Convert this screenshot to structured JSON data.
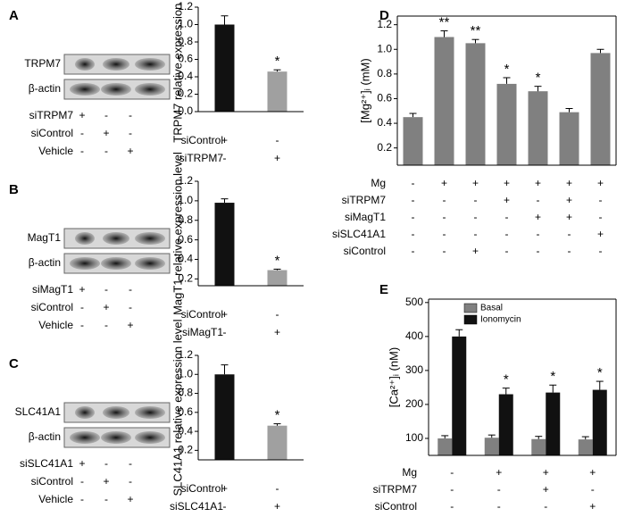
{
  "blots": [
    {
      "panel": "A",
      "rows": [
        "TRPM7",
        "β-actin"
      ],
      "conditions": [
        {
          "label": "siTRPM7",
          "marks": [
            "+",
            "-",
            "-"
          ]
        },
        {
          "label": "siControl",
          "marks": [
            "-",
            "+",
            "-"
          ]
        },
        {
          "label": "Vehicle",
          "marks": [
            "-",
            "-",
            "+"
          ]
        }
      ]
    },
    {
      "panel": "B",
      "rows": [
        "MagT1",
        "β-actin"
      ],
      "conditions": [
        {
          "label": "siMagT1",
          "marks": [
            "+",
            "-",
            "-"
          ]
        },
        {
          "label": "siControl",
          "marks": [
            "-",
            "+",
            "-"
          ]
        },
        {
          "label": "Vehicle",
          "marks": [
            "-",
            "-",
            "+"
          ]
        }
      ]
    },
    {
      "panel": "C",
      "rows": [
        "SLC41A1",
        "β-actin"
      ],
      "conditions": [
        {
          "label": "siSLC41A1",
          "marks": [
            "+",
            "-",
            "-"
          ]
        },
        {
          "label": "siControl",
          "marks": [
            "-",
            "+",
            "-"
          ]
        },
        {
          "label": "Vehicle",
          "marks": [
            "-",
            "-",
            "+"
          ]
        }
      ]
    }
  ],
  "chart_data": [
    {
      "type": "bar",
      "y_label": "TRPM7 relative expression level",
      "values": [
        1.0,
        0.46
      ],
      "errors": [
        0.1,
        0.02
      ],
      "colors": [
        "#111111",
        "#a0a0a0"
      ],
      "annotations": [
        null,
        "*"
      ],
      "ylim": [
        0,
        1.2
      ],
      "yticks": [
        {
          "value": 0,
          "label": "0.0"
        },
        0.2,
        0.4,
        0.6,
        0.8,
        {
          "value": 1,
          "label": "1.0"
        },
        1.2
      ],
      "conditions": [
        {
          "label": "siControl",
          "marks": [
            "+",
            "-"
          ]
        },
        {
          "label": "siTRPM7",
          "marks": [
            "-",
            "+"
          ]
        }
      ]
    },
    {
      "type": "bar",
      "y_label": "MagT1 relative expression level",
      "values": [
        0.98,
        0.29
      ],
      "errors": [
        0.04,
        0.01
      ],
      "colors": [
        "#111111",
        "#a0a0a0"
      ],
      "annotations": [
        null,
        "*"
      ],
      "ylim": [
        0.13,
        1.2
      ],
      "yticks": [
        0.2,
        0.4,
        0.6,
        0.8,
        {
          "value": 1,
          "label": "1.0"
        },
        1.2
      ],
      "conditions": [
        {
          "label": "siControl",
          "marks": [
            "+",
            "-"
          ]
        },
        {
          "label": "siMagT1",
          "marks": [
            "-",
            "+"
          ]
        }
      ]
    },
    {
      "type": "bar",
      "y_label": "SLC41A1 relative expression level",
      "values": [
        1.0,
        0.46
      ],
      "errors": [
        0.1,
        0.02
      ],
      "colors": [
        "#111111",
        "#a0a0a0"
      ],
      "annotations": [
        null,
        "*"
      ],
      "ylim": [
        0.1,
        1.2
      ],
      "yticks": [
        0.2,
        0.4,
        0.6,
        0.8,
        {
          "value": 1,
          "label": "1.0"
        },
        1.2
      ],
      "conditions": [
        {
          "label": "siControl",
          "marks": [
            "+",
            "-"
          ]
        },
        {
          "label": "siSLC41A1",
          "marks": [
            "-",
            "+"
          ]
        }
      ]
    },
    {
      "type": "bar",
      "panel": "D",
      "y_label": "[Mg²⁺]ᵢ (mM)",
      "values": [
        0.45,
        1.1,
        1.05,
        0.72,
        0.66,
        0.49,
        0.97
      ],
      "errors": [
        0.03,
        0.05,
        0.03,
        0.05,
        0.04,
        0.03,
        0.03
      ],
      "colors": [
        "#808080",
        "#808080",
        "#808080",
        "#808080",
        "#808080",
        "#808080",
        "#808080"
      ],
      "annotations": [
        null,
        "**",
        "**",
        "*",
        "*",
        null,
        null
      ],
      "ylim": [
        0.06,
        1.27
      ],
      "yticks": [
        0.2,
        0.4,
        0.6,
        0.8,
        {
          "value": 1,
          "label": "1.0"
        },
        1.2
      ],
      "conditions": [
        {
          "label": "Mg",
          "marks": [
            "-",
            "+",
            "+",
            "+",
            "+",
            "+",
            "+"
          ]
        },
        {
          "label": "siTRPM7",
          "marks": [
            "-",
            "-",
            "-",
            "+",
            "-",
            "+",
            "-"
          ]
        },
        {
          "label": "siMagT1",
          "marks": [
            "-",
            "-",
            "-",
            "-",
            "+",
            "+",
            "-"
          ]
        },
        {
          "label": "siSLC41A1",
          "marks": [
            "-",
            "-",
            "-",
            "-",
            "-",
            "-",
            "+"
          ]
        },
        {
          "label": "siControl",
          "marks": [
            "-",
            "-",
            "+",
            "-",
            "-",
            "-",
            "-"
          ]
        }
      ]
    },
    {
      "type": "grouped_bar",
      "panel": "E",
      "y_label": "[Ca²⁺]ᵢ (nM)",
      "legend": "upper left",
      "series": [
        {
          "name": "Basal",
          "color": "#808080",
          "values": [
            100,
            102,
            98,
            97
          ],
          "errors": [
            8,
            8,
            8,
            8
          ],
          "annotations": [
            null,
            null,
            null,
            null
          ]
        },
        {
          "name": "Ionomycin",
          "color": "#111111",
          "values": [
            400,
            230,
            235,
            243
          ],
          "errors": [
            20,
            18,
            22,
            25
          ],
          "annotations": [
            null,
            "*",
            "*",
            "*"
          ]
        }
      ],
      "ylim": [
        50,
        510
      ],
      "yticks": [
        100,
        200,
        300,
        400,
        500
      ],
      "conditions": [
        {
          "label": "Mg",
          "marks": [
            "-",
            "+",
            "+",
            "+"
          ]
        },
        {
          "label": "siTRPM7",
          "marks": [
            "-",
            "-",
            "+",
            "-"
          ]
        },
        {
          "label": "siControl",
          "marks": [
            "-",
            "-",
            "-",
            "+"
          ]
        }
      ]
    }
  ]
}
